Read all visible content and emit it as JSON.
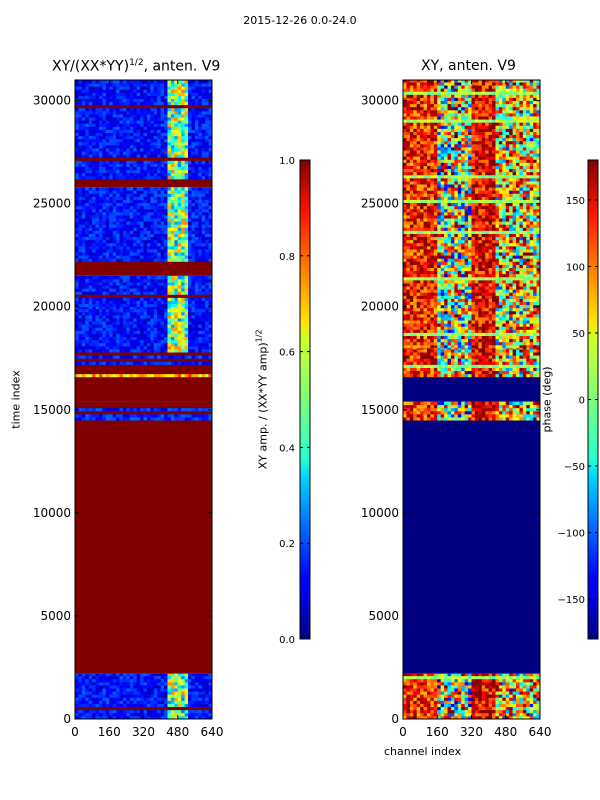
{
  "figure": {
    "suptitle": "2015-12-26 0.0-24.0",
    "colors": {
      "deep_red": "#7f0000",
      "deep_blue": "#00007f",
      "frame": "#000000"
    }
  },
  "chart_data": [
    {
      "type": "heatmap",
      "id": "amp",
      "title": "XY/(XX*YY)^{1/2}, anten. V9",
      "title_base": "XY/(XX*YY)",
      "title_sup": "1/2",
      "title_rest": ", anten. V9",
      "xlabel": "",
      "ylabel": "time index",
      "xlim": [
        0,
        640
      ],
      "ylim": [
        0,
        31000
      ],
      "xticks": [
        0,
        160,
        320,
        480,
        640
      ],
      "yticks": [
        0,
        5000,
        10000,
        15000,
        20000,
        25000,
        30000
      ],
      "colorbar": {
        "label_base": "XY amp. / (XX*YY amp)",
        "label_sup": "1/2",
        "range": [
          0.0,
          1.0
        ],
        "ticks": [
          "0.0",
          "0.2",
          "0.4",
          "0.6",
          "0.8",
          "1.0"
        ],
        "colormap": "jet"
      },
      "bands": [
        {
          "y": [
            0,
            2200
          ],
          "pattern": "low-with-bright-channels-420-520"
        },
        {
          "y": [
            2200,
            14500
          ],
          "pattern": "saturated",
          "value": 1.0
        },
        {
          "y": [
            14500,
            15400
          ],
          "pattern": "mixed-stripes"
        },
        {
          "y": [
            15400,
            16600
          ],
          "pattern": "saturated",
          "value": 1.0
        },
        {
          "y": [
            16600,
            17800
          ],
          "pattern": "mixed-stripes"
        },
        {
          "y": [
            17800,
            20000
          ],
          "pattern": "low-with-bright-channels-420-520"
        },
        {
          "y": [
            20000,
            21500
          ],
          "pattern": "low-with-bright-channels-420-520"
        },
        {
          "y": [
            21500,
            22200
          ],
          "pattern": "saturated",
          "value": 1.0
        },
        {
          "y": [
            22200,
            25800
          ],
          "pattern": "low-with-bright-channels-420-520"
        },
        {
          "y": [
            25800,
            26200
          ],
          "pattern": "saturated",
          "value": 1.0
        },
        {
          "y": [
            26200,
            31000
          ],
          "pattern": "low-with-bright-channels-420-520"
        }
      ]
    },
    {
      "type": "heatmap",
      "id": "phase",
      "title": "XY, anten. V9",
      "xlabel": "channel index",
      "ylabel": "",
      "xlim": [
        0,
        640
      ],
      "ylim": [
        0,
        31000
      ],
      "xticks": [
        0,
        160,
        320,
        480,
        640
      ],
      "yticks": [
        0,
        5000,
        10000,
        15000,
        20000,
        25000,
        30000
      ],
      "colorbar": {
        "label": "phase (deg)",
        "range": [
          -180,
          180
        ],
        "ticks": [
          "−150",
          "−100",
          "−50",
          "0",
          "50",
          "100",
          "150"
        ],
        "tick_values": [
          -150,
          -100,
          -50,
          0,
          50,
          100,
          150
        ],
        "colormap": "jet"
      },
      "bands": [
        {
          "y": [
            0,
            2200
          ],
          "pattern": "random-phase"
        },
        {
          "y": [
            2200,
            14500
          ],
          "pattern": "constant",
          "value": -180
        },
        {
          "y": [
            14500,
            15400
          ],
          "pattern": "random-phase"
        },
        {
          "y": [
            15400,
            16600
          ],
          "pattern": "constant",
          "value": -180
        },
        {
          "y": [
            16600,
            18000
          ],
          "pattern": "random-phase"
        },
        {
          "y": [
            18000,
            31000
          ],
          "pattern": "random-phase"
        }
      ]
    }
  ]
}
